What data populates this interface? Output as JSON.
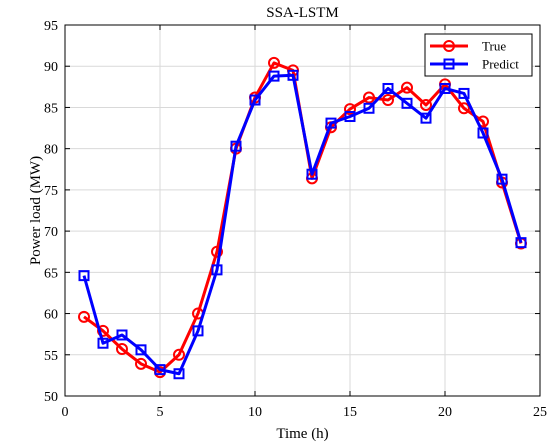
{
  "chart_data": {
    "type": "line",
    "title": "SSA-LSTM",
    "xlabel": "Time (h)",
    "ylabel": "Power load (MW)",
    "xlim": [
      0,
      25
    ],
    "ylim": [
      50,
      95
    ],
    "xticks": [
      0,
      5,
      10,
      15,
      20,
      25
    ],
    "yticks": [
      50,
      55,
      60,
      65,
      70,
      75,
      80,
      85,
      90,
      95
    ],
    "grid": true,
    "legend_position": "top-right",
    "x": [
      1,
      2,
      3,
      4,
      5,
      6,
      7,
      8,
      9,
      10,
      11,
      12,
      13,
      14,
      15,
      16,
      17,
      18,
      19,
      20,
      21,
      22,
      23,
      24
    ],
    "series": [
      {
        "name": "True",
        "color": "#ff0000",
        "marker": "circle",
        "values": [
          59.6,
          57.9,
          55.7,
          53.9,
          52.9,
          55.0,
          60.0,
          67.5,
          80.0,
          86.2,
          90.4,
          89.5,
          76.4,
          82.6,
          84.8,
          86.2,
          85.9,
          87.4,
          85.3,
          87.8,
          84.9,
          83.3,
          75.9,
          68.5
        ]
      },
      {
        "name": "Predict",
        "color": "#0000ff",
        "marker": "square",
        "values": [
          64.6,
          56.4,
          57.4,
          55.6,
          53.2,
          52.7,
          57.9,
          65.3,
          80.3,
          85.9,
          88.8,
          88.9,
          76.9,
          83.1,
          83.9,
          84.9,
          87.3,
          85.5,
          83.7,
          87.3,
          86.7,
          81.9,
          76.3,
          68.6
        ]
      }
    ]
  }
}
